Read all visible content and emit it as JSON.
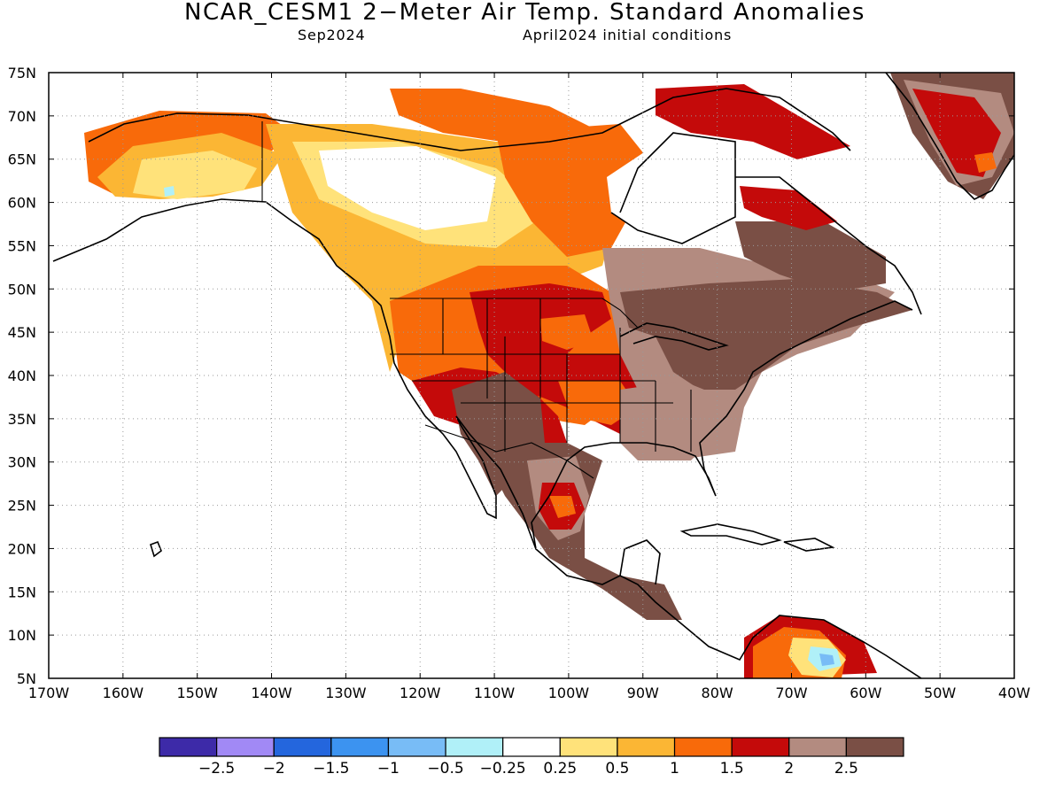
{
  "header": {
    "title": "NCAR_CESM1 2−Meter Air Temp. Standard Anomalies",
    "valid_month": "Sep2024",
    "initial_conditions": "April2024 initial conditions"
  },
  "map": {
    "lat_labels": [
      "75N",
      "70N",
      "65N",
      "60N",
      "55N",
      "50N",
      "45N",
      "40N",
      "35N",
      "30N",
      "25N",
      "20N",
      "15N",
      "10N",
      "5N"
    ],
    "lon_labels": [
      "170W",
      "160W",
      "150W",
      "140W",
      "130W",
      "120W",
      "110W",
      "100W",
      "90W",
      "80W",
      "70W",
      "60W",
      "50W",
      "40W"
    ],
    "anomaly_colors": {
      "none": "#ffffff",
      "pos_025": "#ffe27a",
      "pos_05": "#fbb634",
      "pos_1": "#f86a0a",
      "pos_15": "#c40a0a",
      "pos_2": "#b38b80",
      "pos_25": "#7a4f45",
      "neg_025": "#b0f0f8",
      "neg_05": "#78bcf6"
    }
  },
  "colorbar": {
    "colors": [
      "#3d2aa8",
      "#a189f5",
      "#2466dd",
      "#3c93f0",
      "#78bcf6",
      "#b0f0f8",
      "#ffffff",
      "#ffe27a",
      "#fbb634",
      "#f86a0a",
      "#c40a0a",
      "#b38b80",
      "#7a4f45"
    ],
    "labels": [
      "−2.5",
      "−2",
      "−1.5",
      "−1",
      "−0.5",
      "−0.25",
      "0.25",
      "0.5",
      "1",
      "1.5",
      "2",
      "2.5"
    ]
  }
}
